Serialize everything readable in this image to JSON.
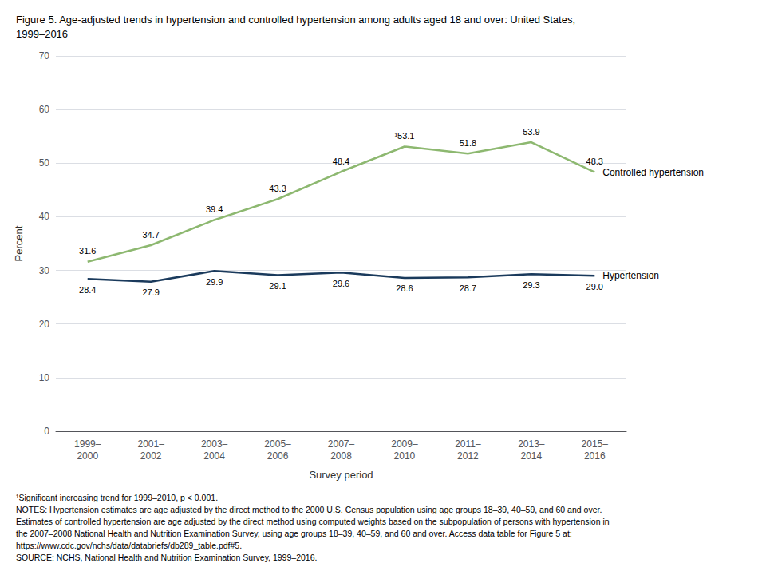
{
  "chart_data": {
    "type": "line",
    "title": "Figure 5. Age-adjusted trends in hypertension and controlled hypertension among adults aged 18 and over: United States,\n1999–2016",
    "xlabel": "Survey period",
    "ylabel": "Percent",
    "categories": [
      "1999–\n2000",
      "2001–\n2002",
      "2003–\n2004",
      "2005–\n2006",
      "2007–\n2008",
      "2009–\n2010",
      "2011–\n2012",
      "2013–\n2014",
      "2015–\n2016"
    ],
    "series": [
      {
        "name": "Controlled hypertension",
        "color": "#8db870",
        "values": [
          31.6,
          34.7,
          39.4,
          43.3,
          48.4,
          53.1,
          51.8,
          53.9,
          48.3
        ],
        "value_labels": [
          "31.6",
          "34.7",
          "39.4",
          "43.3",
          "48.4",
          "¹53.1",
          "51.8",
          "53.9",
          "48.3"
        ]
      },
      {
        "name": "Hypertension",
        "color": "#1a3a5c",
        "values": [
          28.4,
          27.9,
          29.9,
          29.1,
          29.6,
          28.6,
          28.7,
          29.3,
          29.0
        ],
        "value_labels": [
          "28.4",
          "27.9",
          "29.9",
          "29.1",
          "29.6",
          "28.6",
          "28.7",
          "29.3",
          "29.0"
        ]
      }
    ],
    "ylim": [
      0,
      70
    ],
    "yticks": [
      0,
      10,
      20,
      30,
      40,
      50,
      60,
      70
    ],
    "grid": true,
    "data_labels": true,
    "footnotes": [
      "¹Significant increasing trend for 1999–2010, p < 0.001.",
      "NOTES: Hypertension estimates are age adjusted by the direct method to the 2000 U.S. Census population using age groups 18–39, 40–59, and 60 and over.",
      "Estimates of controlled hypertension are age adjusted by the direct method using computed weights based on the subpopulation of persons with hypertension in",
      "the 2007–2008 National Health and Nutrition Examination Survey, using age groups 18–39, 40–59, and 60 and over. Access data table for Figure 5 at:",
      "https://www.cdc.gov/nchs/data/databriefs/db289_table.pdf#5.",
      "SOURCE: NCHS, National Health and Nutrition Examination Survey, 1999–2016."
    ]
  }
}
